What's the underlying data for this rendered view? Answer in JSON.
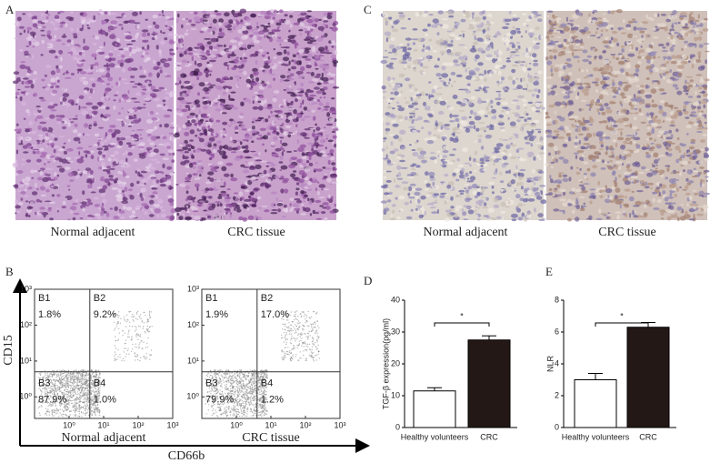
{
  "panel_a": {
    "label": "A",
    "captions": [
      "Normal adjacent",
      "CRC tissue"
    ]
  },
  "panel_c": {
    "label": "C",
    "captions": [
      "Normal adjacent",
      "CRC tissue"
    ]
  },
  "panel_b": {
    "label": "B",
    "y_axis_label": "CD15",
    "x_axis_label": "CD66b",
    "ticks": [
      {
        "value": 0,
        "label": "10⁰"
      },
      {
        "value": 1,
        "label": "10¹"
      },
      {
        "value": 2,
        "label": "10²"
      },
      {
        "value": 3,
        "label": "10³"
      }
    ],
    "plots": [
      {
        "caption": "Normal adjacent",
        "quadrants": [
          {
            "name": "B1",
            "value": "1.8%"
          },
          {
            "name": "B2",
            "value": "9.2%"
          },
          {
            "name": "B3",
            "value": "87.9%"
          },
          {
            "name": "B4",
            "value": "1.0%"
          }
        ]
      },
      {
        "caption": "CRC tissue",
        "quadrants": [
          {
            "name": "B1",
            "value": "1.9%"
          },
          {
            "name": "B2",
            "value": "17.0%"
          },
          {
            "name": "B3",
            "value": "79.9%"
          },
          {
            "name": "B4",
            "value": "1.2%"
          }
        ]
      }
    ]
  },
  "chart_data": [
    {
      "label": "D",
      "type": "bar",
      "y_label": "TGF-β expression(pg/ml)",
      "categories": [
        "Healthy volunteers",
        "CRC"
      ],
      "values": [
        11.5,
        27.5
      ],
      "errors": [
        1.0,
        1.3
      ],
      "colors": [
        "#ffffff",
        "#231815"
      ],
      "ylim": [
        0,
        40
      ],
      "yticks": [
        0,
        10,
        20,
        30,
        40
      ],
      "annotation": "*"
    },
    {
      "label": "E",
      "type": "bar",
      "y_label": "NLR",
      "categories": [
        "Healthy volunteers",
        "CRC"
      ],
      "values": [
        3.0,
        6.3
      ],
      "errors": [
        0.4,
        0.3
      ],
      "colors": [
        "#ffffff",
        "#231815"
      ],
      "ylim": [
        0,
        8
      ],
      "yticks": [
        0,
        2,
        4,
        6,
        8
      ],
      "annotation": "*"
    }
  ]
}
